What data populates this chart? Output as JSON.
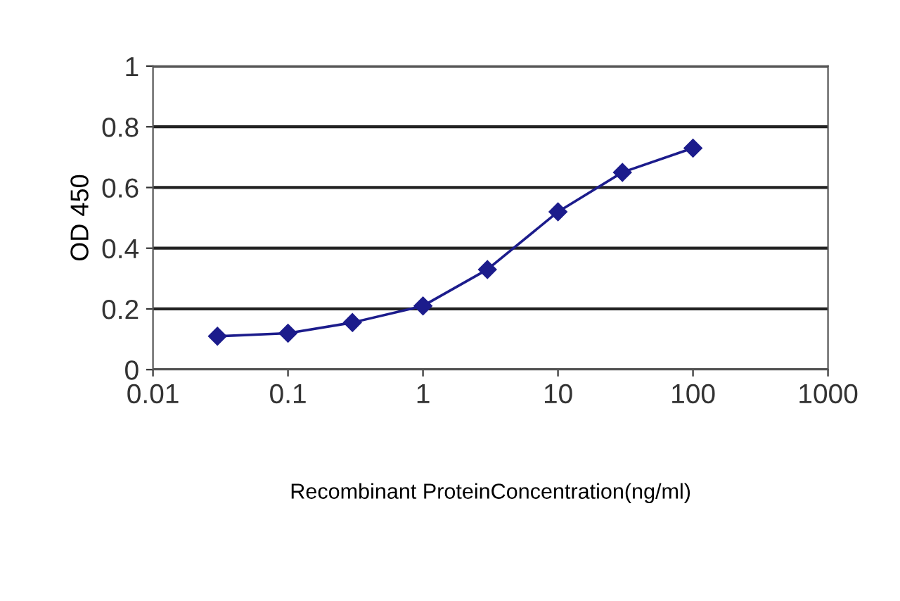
{
  "chart_data": {
    "type": "line",
    "xlabel": "Recombinant ProteinConcentration(ng/ml)",
    "ylabel": "OD 450",
    "x": [
      0.03,
      0.1,
      0.3,
      1,
      3,
      10,
      30,
      100
    ],
    "series": [
      {
        "color": "#1c1c8c",
        "values": [
          0.11,
          0.12,
          0.155,
          0.21,
          0.33,
          0.52,
          0.65,
          0.73
        ]
      }
    ],
    "log": "x",
    "xlim": [
      0.01,
      1000
    ],
    "xticks": [
      0.01,
      0.1,
      1,
      10,
      100,
      1000
    ],
    "ylim": [
      0,
      1
    ],
    "yticks": [
      0,
      0.2,
      0.4,
      0.6,
      0.8,
      1
    ],
    "grid": "y",
    "marker": "diamond",
    "line_style": "solid",
    "legend": false
  }
}
